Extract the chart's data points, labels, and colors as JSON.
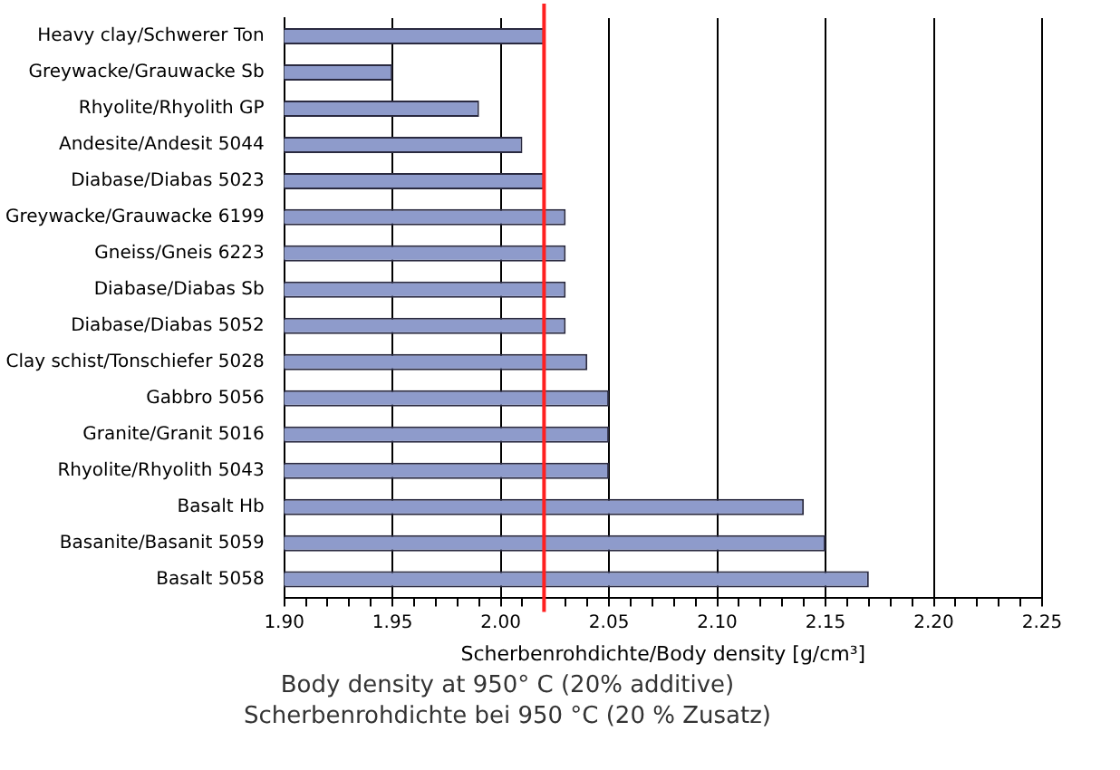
{
  "chart_data": {
    "type": "bar",
    "orientation": "horizontal",
    "categories": [
      "Heavy clay/Schwerer Ton",
      "Greywacke/Grauwacke Sb",
      "Rhyolite/Rhyolith GP",
      "Andesite/Andesit 5044",
      "Diabase/Diabas 5023",
      "Greywacke/Grauwacke 6199",
      "Gneiss/Gneis 6223",
      "Diabase/Diabas Sb",
      "Diabase/Diabas 5052",
      "Clay schist/Tonschiefer 5028",
      "Gabbro 5056",
      "Granite/Granit 5016",
      "Rhyolite/Rhyolith 5043",
      "Basalt Hb",
      "Basanite/Basanit 5059",
      "Basalt 5058"
    ],
    "values": [
      2.02,
      1.95,
      1.99,
      2.01,
      2.02,
      2.03,
      2.03,
      2.03,
      2.03,
      2.04,
      2.05,
      2.05,
      2.05,
      2.14,
      2.15,
      2.17
    ],
    "color": "#8e9bcb",
    "xlim": [
      1.9,
      2.25
    ],
    "xticks": [
      "1.90",
      {
        "value": 1.91,
        "label": null
      },
      {
        "value": 1.92,
        "label": null
      },
      {
        "value": 1.93,
        "label": null
      },
      {
        "value": 1.94,
        "label": null
      },
      {
        "value": 1.95,
        "label": "1.95"
      },
      {
        "value": 1.96,
        "label": null
      },
      {
        "value": 1.97,
        "label": null
      },
      {
        "value": 1.98,
        "label": null
      },
      {
        "value": 1.99,
        "label": null
      },
      {
        "value": 2.0,
        "label": "2.00"
      },
      {
        "value": 2.01,
        "label": null
      },
      {
        "value": 2.02,
        "label": null
      },
      {
        "value": 2.03,
        "label": null
      },
      {
        "value": 2.04,
        "label": null
      },
      {
        "value": 2.05,
        "label": "2.05"
      },
      {
        "value": 2.06,
        "label": null
      },
      {
        "value": 2.07,
        "label": null
      },
      {
        "value": 2.08,
        "label": null
      },
      {
        "value": 2.09,
        "label": null
      },
      {
        "value": 2.1,
        "label": "2.10"
      },
      {
        "value": 2.11,
        "label": null
      },
      {
        "value": 2.12,
        "label": null
      },
      {
        "value": 2.13,
        "label": null
      },
      {
        "value": 2.14,
        "label": null
      },
      {
        "value": 2.15,
        "label": "2.15"
      },
      {
        "value": 2.16,
        "label": null
      },
      {
        "value": 2.17,
        "label": null
      },
      {
        "value": 2.18,
        "label": null
      },
      {
        "value": 2.19,
        "label": null
      },
      {
        "value": 2.2,
        "label": "2.20"
      },
      {
        "value": 2.21,
        "label": null
      },
      {
        "value": 2.22,
        "label": null
      },
      {
        "value": 2.23,
        "label": null
      },
      {
        "value": 2.24,
        "label": null
      },
      {
        "value": 2.25,
        "label": "2.25"
      }
    ],
    "xlabel": "Scherbenrohdichte/Body density [g/cm³]",
    "grid": "x",
    "legend": false,
    "ref_lines": [
      {
        "axis": "x",
        "value": 2.02,
        "color": "#ff2020"
      }
    ],
    "annotations": [
      "Body density at 950° C (20% additive)",
      "Scherbenrohdichte bei 950 °C (20 % Zusatz)"
    ]
  }
}
